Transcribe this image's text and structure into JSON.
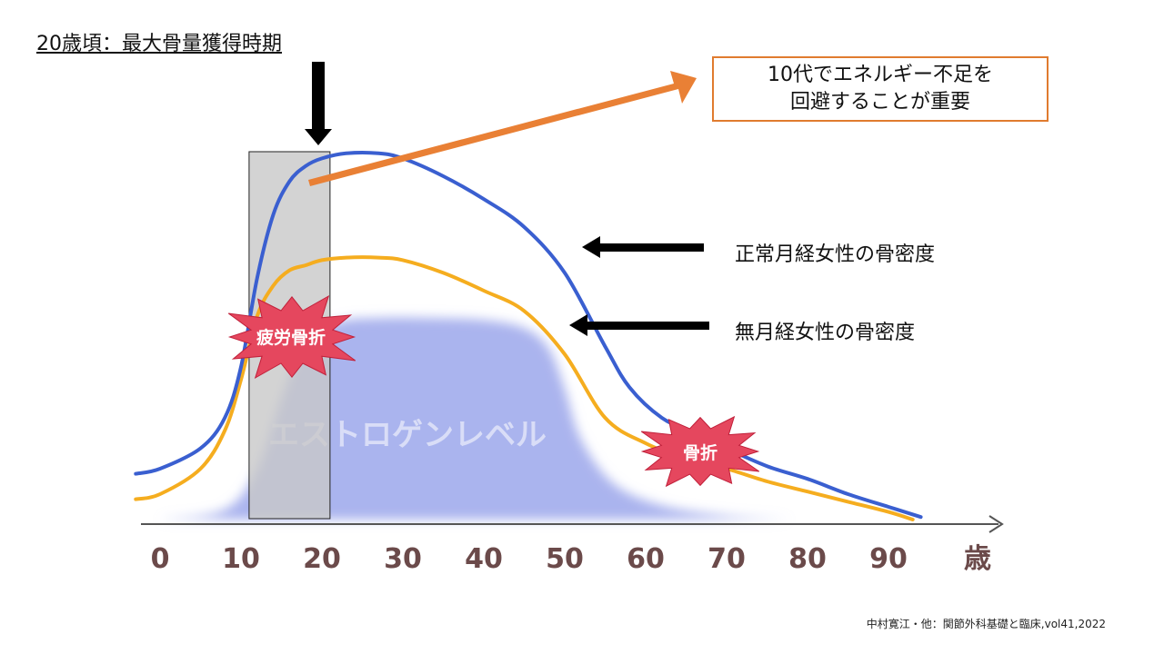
{
  "header": {
    "title": "20歳頃：最大骨量獲得時期"
  },
  "note": {
    "line1": "10代でエネルギー不足を",
    "line2": "回避することが重要"
  },
  "legend": {
    "normal": "正常月経女性の骨密度",
    "amenorrhea": "無月経女性の骨密度"
  },
  "labels": {
    "stress_fracture": "疲労骨折",
    "fracture": "骨折",
    "estrogen": "エストロゲンレベル"
  },
  "citation": "中村寛江・他：関節外科基礎と臨床,vol41,2022",
  "colors": {
    "normal": "#3a5fd0",
    "amenorrhea": "#f5ad1f",
    "estrogen": "#aab4ee",
    "arrow": "#e98035",
    "burst": "#e5475e",
    "highlight": "#c8c8c8"
  },
  "chart_data": {
    "type": "line",
    "x_ticks": [
      0,
      10,
      20,
      30,
      40,
      50,
      60,
      70,
      80,
      90
    ],
    "x_unit": "歳",
    "highlight_range": [
      11,
      21
    ],
    "series": [
      {
        "name": "正常月経女性の骨密度",
        "color": "#3a5fd0",
        "x": [
          -3,
          0,
          5,
          8,
          10,
          12,
          14,
          16,
          18,
          20,
          23,
          27,
          30,
          35,
          40,
          45,
          50,
          55,
          58,
          62,
          66,
          70,
          75,
          80,
          85,
          90,
          94
        ],
        "y": [
          0.18,
          0.2,
          0.28,
          0.4,
          0.6,
          0.95,
          1.2,
          1.33,
          1.39,
          1.42,
          1.44,
          1.44,
          1.42,
          1.35,
          1.26,
          1.15,
          0.97,
          0.68,
          0.52,
          0.4,
          0.34,
          0.28,
          0.21,
          0.16,
          0.1,
          0.05,
          0.01
        ]
      },
      {
        "name": "無月経女性の骨密度",
        "color": "#f5ad1f",
        "x": [
          -3,
          0,
          5,
          8,
          10,
          12,
          14,
          16,
          18,
          20,
          23,
          27,
          30,
          35,
          40,
          45,
          50,
          55,
          60,
          65,
          70,
          75,
          80,
          85,
          90,
          93
        ],
        "y": [
          0.08,
          0.1,
          0.2,
          0.35,
          0.55,
          0.8,
          0.92,
          0.98,
          1.0,
          1.02,
          1.03,
          1.03,
          1.02,
          0.97,
          0.9,
          0.82,
          0.65,
          0.4,
          0.3,
          0.24,
          0.2,
          0.15,
          0.11,
          0.07,
          0.03,
          0.0
        ]
      },
      {
        "name": "エストロゲンレベル",
        "color": "#aab4ee",
        "x": [
          0,
          8,
          12,
          15,
          18,
          22,
          27,
          33,
          40,
          45,
          48,
          50,
          52,
          56,
          62,
          70,
          78
        ],
        "y": [
          0,
          0.05,
          0.25,
          0.6,
          0.88,
          0.98,
          1.0,
          1.0,
          0.99,
          0.95,
          0.85,
          0.65,
          0.4,
          0.18,
          0.07,
          0.02,
          0
        ]
      }
    ]
  }
}
